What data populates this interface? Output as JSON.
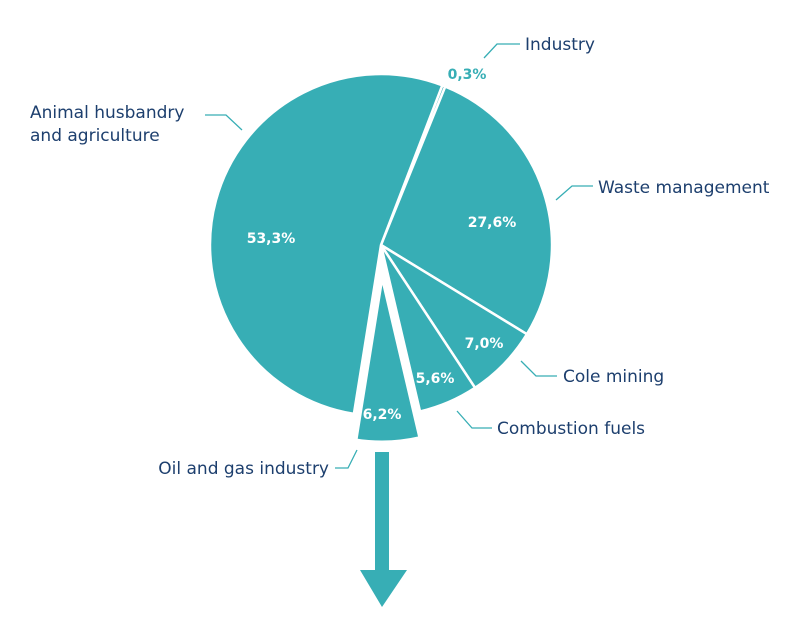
{
  "chart_data": {
    "type": "pie",
    "start_slice": "Industry",
    "exploded": "Oil and gas industry",
    "slices": [
      {
        "name": "Industry",
        "value": 0.3,
        "value_label": "0,3%"
      },
      {
        "name": "Waste management",
        "value": 27.6,
        "value_label": "27,6%"
      },
      {
        "name": "Cole mining",
        "value": 7.0,
        "value_label": "7,0%"
      },
      {
        "name": "Combustion fuels",
        "value": 5.6,
        "value_label": "5,6%"
      },
      {
        "name": "Oil and gas industry",
        "value": 6.2,
        "value_label": "6,2%"
      },
      {
        "name": "Animal husbandry and agriculture",
        "label_lines": [
          "Animal husbandry",
          "and agriculture"
        ],
        "value": 53.3,
        "value_label": "53,3%"
      }
    ],
    "colors": {
      "slice": "#37aeb5",
      "label_text": "#1d3f6e",
      "leader": "#37aeb5",
      "separator": "#ffffff"
    },
    "annotation": "arrow-down-from-exploded-slice"
  }
}
